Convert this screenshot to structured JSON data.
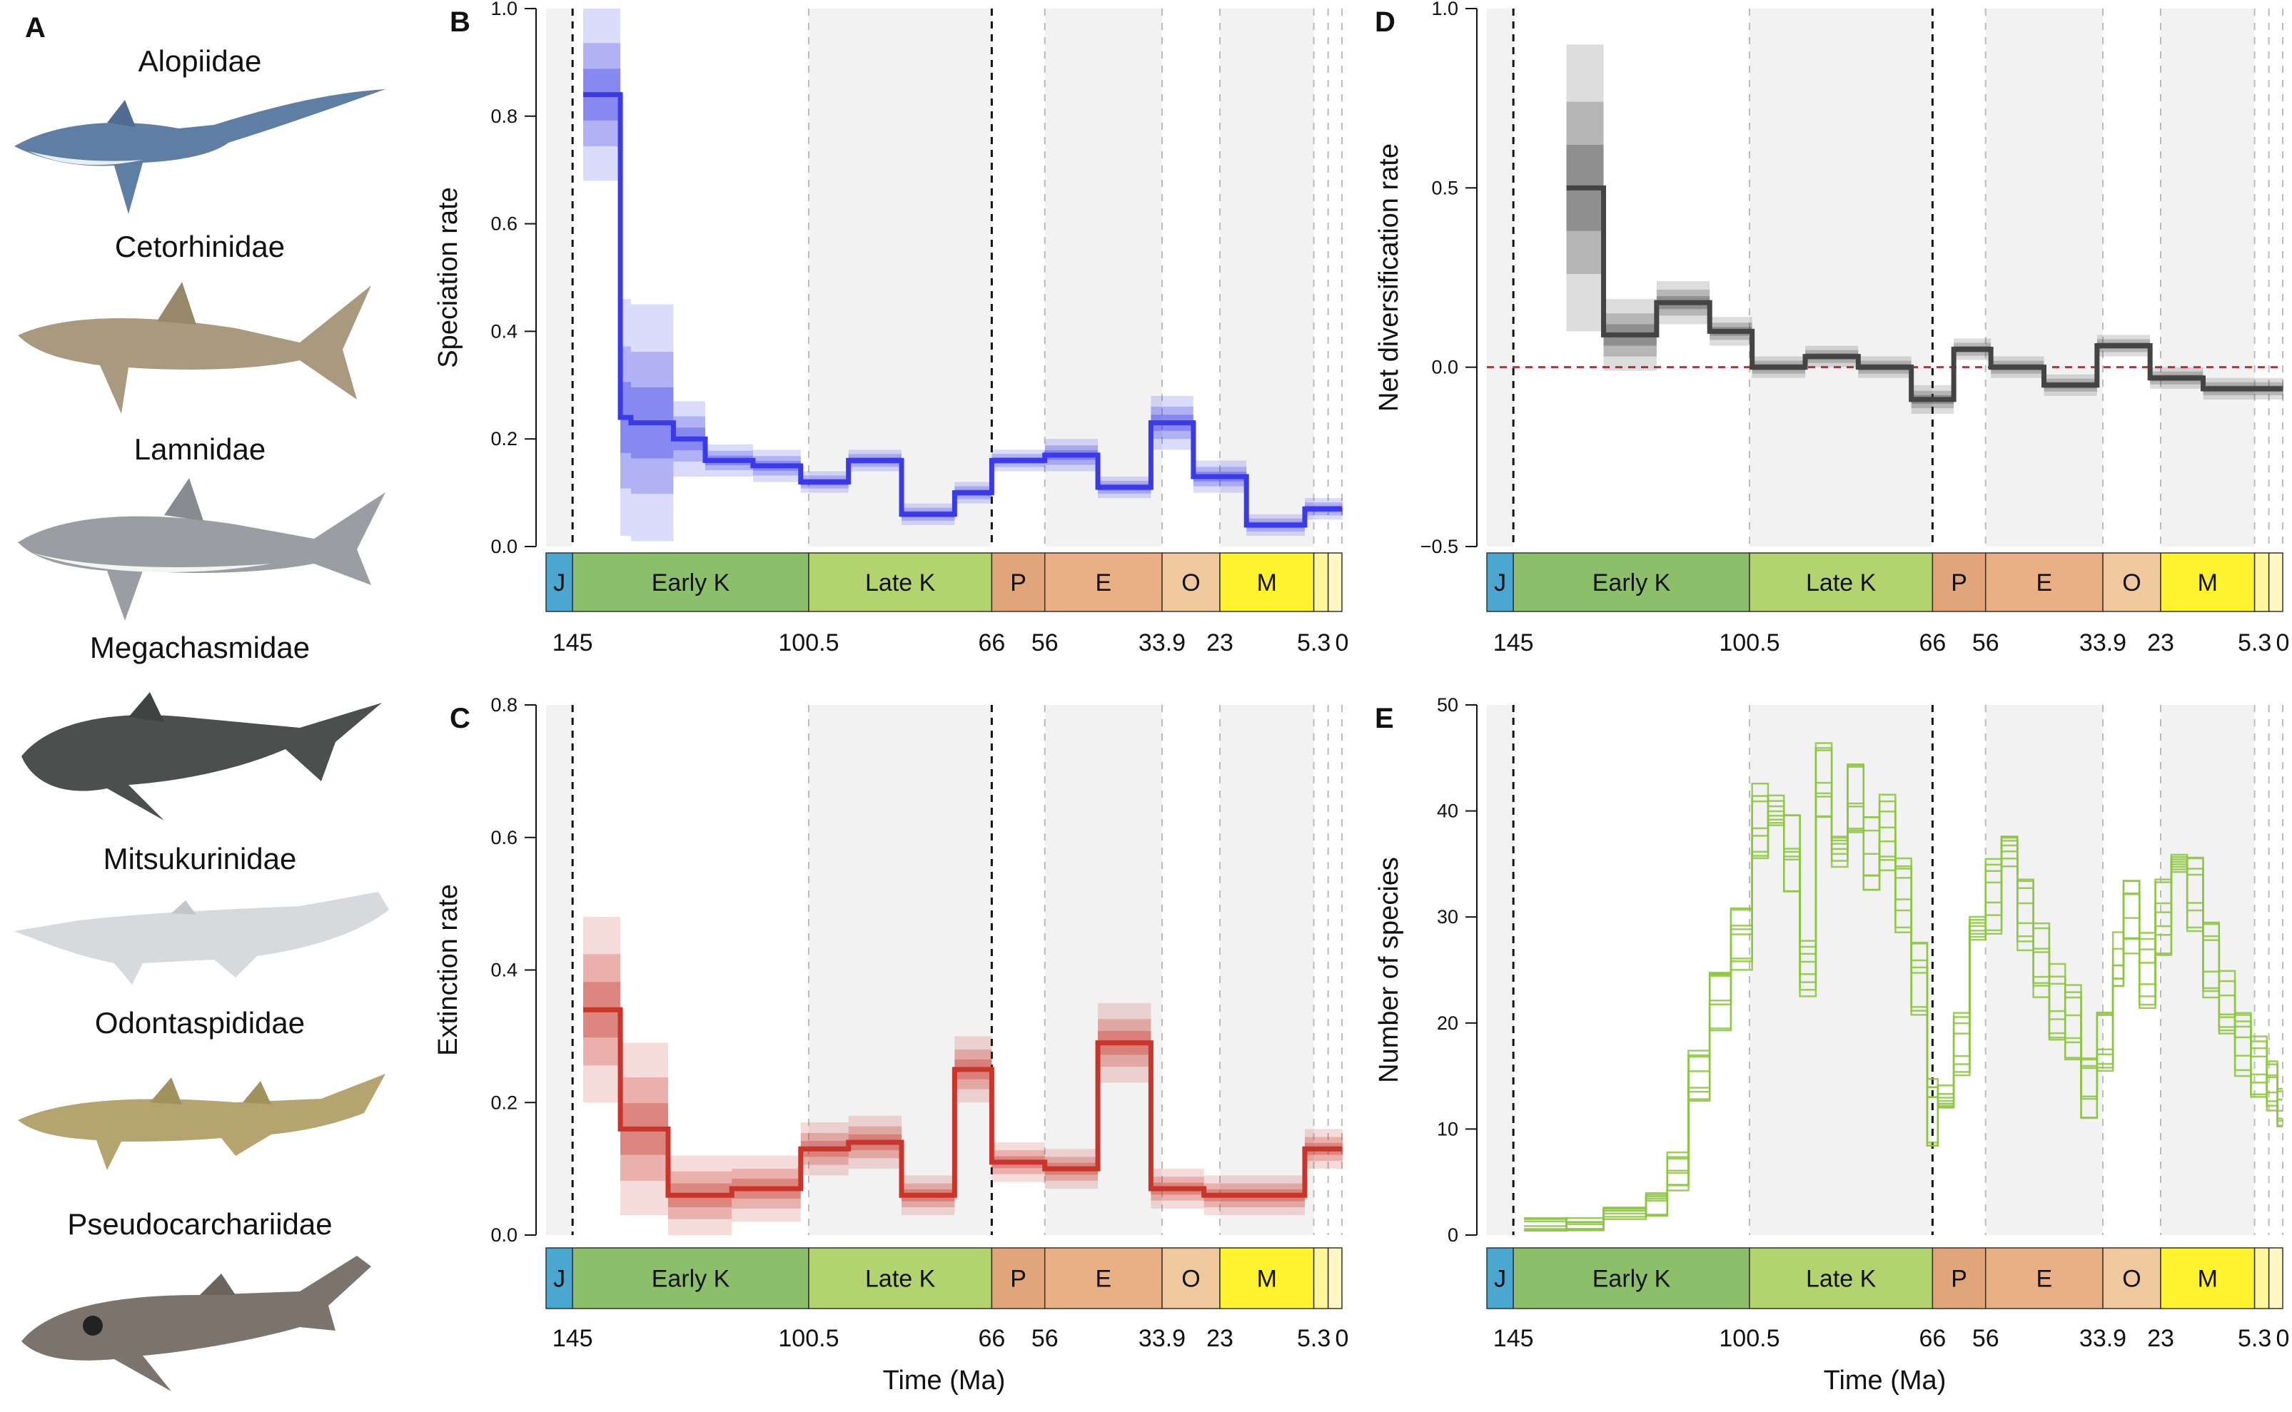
{
  "panel_a": {
    "letter": "A",
    "families": [
      "Alopiidae",
      "Cetorhinidae",
      "Lamnidae",
      "Megachasmidae",
      "Mitsukurinidae",
      "Odontaspididae",
      "Pseudocarchariidae"
    ]
  },
  "colors": {
    "speciation": "#3a3ae8",
    "extinction": "#c8352a",
    "net_diversification": "#444444",
    "species": "#8cc63f",
    "zero_line": "#d62728",
    "shaded_interval": "#f2f2f2"
  },
  "timescale": {
    "periods": [
      {
        "label": "J",
        "start": 150,
        "end": 145,
        "color": "#4ba6d0"
      },
      {
        "label": "Early K",
        "start": 145,
        "end": 100.5,
        "color": "#8cbf6a"
      },
      {
        "label": "Late K",
        "start": 100.5,
        "end": 66,
        "color": "#b3d36f"
      },
      {
        "label": "P",
        "start": 66,
        "end": 56,
        "color": "#e2a57a"
      },
      {
        "label": "E",
        "start": 56,
        "end": 33.9,
        "color": "#e8b084"
      },
      {
        "label": "O",
        "start": 33.9,
        "end": 23,
        "color": "#f0c89e"
      },
      {
        "label": "M",
        "start": 23,
        "end": 5.3,
        "color": "#fff22e"
      },
      {
        "label": "",
        "start": 5.3,
        "end": 2.6,
        "color": "#fff59a"
      },
      {
        "label": "",
        "start": 2.6,
        "end": 0,
        "color": "#fff8c4"
      }
    ],
    "tick_labels": [
      "145",
      "100.5",
      "66",
      "56",
      "33.9",
      "23",
      "5.3",
      "0"
    ],
    "tick_values": [
      145,
      100.5,
      66,
      56,
      33.9,
      23,
      5.3,
      0
    ]
  },
  "chart_data": [
    {
      "panel": "B",
      "type": "line",
      "ylabel": "Speciation rate",
      "xlabel": "",
      "xlim": [
        150,
        0
      ],
      "ylim": [
        0,
        1
      ],
      "yticks": [
        "0.0",
        "0.2",
        "0.4",
        "0.6",
        "0.8",
        "1.0"
      ],
      "x": [
        143,
        136,
        134,
        126,
        120,
        111,
        102,
        93,
        83,
        73,
        66,
        56,
        46,
        36,
        28,
        18,
        7,
        0
      ],
      "values": [
        0.84,
        0.24,
        0.23,
        0.2,
        0.16,
        0.15,
        0.12,
        0.16,
        0.06,
        0.1,
        0.16,
        0.17,
        0.11,
        0.23,
        0.13,
        0.04,
        0.07,
        0.07
      ],
      "spread": [
        0.16,
        0.22,
        0.22,
        0.07,
        0.03,
        0.03,
        0.02,
        0.02,
        0.02,
        0.02,
        0.02,
        0.03,
        0.02,
        0.05,
        0.03,
        0.02,
        0.02,
        0.02
      ]
    },
    {
      "panel": "C",
      "type": "line",
      "ylabel": "Extinction rate",
      "xlabel": "Time (Ma)",
      "xlim": [
        150,
        0
      ],
      "ylim": [
        0,
        0.8
      ],
      "yticks": [
        "0.0",
        "0.2",
        "0.4",
        "0.6",
        "0.8"
      ],
      "x": [
        143,
        136,
        127,
        115,
        102,
        93,
        83,
        73,
        66,
        56,
        46,
        36,
        26,
        18,
        7,
        0
      ],
      "values": [
        0.34,
        0.16,
        0.06,
        0.07,
        0.13,
        0.14,
        0.06,
        0.25,
        0.11,
        0.1,
        0.29,
        0.07,
        0.06,
        0.06,
        0.13,
        0.13
      ],
      "spread": [
        0.14,
        0.13,
        0.06,
        0.05,
        0.04,
        0.04,
        0.03,
        0.05,
        0.03,
        0.03,
        0.06,
        0.03,
        0.03,
        0.03,
        0.03,
        0.03
      ]
    },
    {
      "panel": "D",
      "type": "line",
      "ylabel": "Net diversification rate",
      "xlabel": "",
      "xlim": [
        150,
        0
      ],
      "ylim": [
        -0.5,
        1
      ],
      "yticks": [
        "−0.5",
        "0.0",
        "0.5",
        "1.0"
      ],
      "x": [
        135,
        128,
        118,
        108,
        100,
        90,
        80,
        70,
        62,
        55,
        45,
        35,
        25,
        15,
        5,
        0
      ],
      "values": [
        0.5,
        0.09,
        0.18,
        0.1,
        0.0,
        0.03,
        0.0,
        -0.09,
        0.05,
        0.0,
        -0.05,
        0.06,
        -0.03,
        -0.06,
        -0.06,
        -0.06
      ],
      "spread": [
        0.4,
        0.1,
        0.06,
        0.04,
        0.03,
        0.03,
        0.03,
        0.04,
        0.03,
        0.03,
        0.03,
        0.03,
        0.03,
        0.03,
        0.03,
        0.03
      ],
      "reference_line": 0
    },
    {
      "panel": "E",
      "type": "line",
      "ylabel": "Number of species",
      "xlabel": "Time (Ma)",
      "xlim": [
        150,
        0
      ],
      "ylim": [
        0,
        50
      ],
      "yticks": [
        "0",
        "10",
        "20",
        "30",
        "40",
        "50"
      ],
      "x": [
        143,
        135,
        128,
        120,
        116,
        112,
        108,
        104,
        100,
        97,
        94,
        91,
        88,
        85,
        82,
        79,
        76,
        73,
        70,
        67,
        65,
        62,
        59,
        56,
        53,
        50,
        47,
        44,
        41,
        38,
        35,
        32,
        30,
        27,
        24,
        21,
        18,
        15,
        12,
        9,
        6,
        3,
        1
      ],
      "values": [
        1,
        1,
        2,
        3,
        6,
        15,
        22,
        28,
        39,
        42,
        36,
        25,
        43,
        34,
        41,
        36,
        38,
        32,
        24,
        12,
        15,
        18,
        29,
        32,
        34,
        30,
        26,
        22,
        20,
        14,
        18,
        27,
        30,
        25,
        30,
        34,
        32,
        26,
        22,
        18,
        16,
        14,
        12
      ],
      "spread": [
        1,
        1,
        1,
        2,
        3,
        4,
        5,
        5,
        6,
        6,
        6,
        6,
        6,
        6,
        6,
        6,
        6,
        6,
        6,
        6,
        5,
        5,
        6,
        6,
        6,
        6,
        6,
        6,
        6,
        5,
        5,
        6,
        6,
        6,
        6,
        6,
        6,
        6,
        5,
        5,
        5,
        4,
        3
      ]
    }
  ]
}
